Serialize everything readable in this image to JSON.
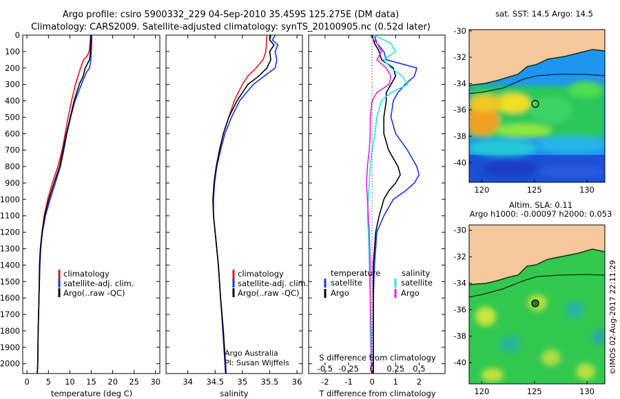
{
  "header": {
    "title_line1": "Argo profile: csiro 5900332_229 04-Sep-2010 35.459S 125.275E (DM data)",
    "title_line2": "Climatology: CARS2009. Satellite-adjusted climatology: synTS_20100905.nc (0.52d later)"
  },
  "colors": {
    "climatology": "#e8141e",
    "satellite": "#1432e6",
    "argo": "#000000",
    "sal_satellite": "#22e6e6",
    "sal_argo": "#e81ee6",
    "land": "#f5c89e"
  },
  "chart_data": [
    {
      "type": "line",
      "id": "temperature",
      "xlabel": "temperature (deg C)",
      "xlim": [
        -1,
        31
      ],
      "xticks": [
        0,
        5,
        10,
        15,
        20,
        25,
        30
      ],
      "ylim": [
        0,
        2060
      ],
      "yticks": [
        0,
        100,
        200,
        300,
        400,
        500,
        600,
        700,
        800,
        900,
        1000,
        1100,
        1200,
        1300,
        1400,
        1500,
        1600,
        1700,
        1800,
        1900,
        2000
      ],
      "y_reversed": true,
      "legend": [
        "climatology",
        "satellite-adj. clim.",
        "Argo(..raw -QC)"
      ],
      "series": [
        {
          "name": "climatology",
          "color": "#e8141e",
          "depth": [
            0,
            20,
            50,
            100,
            130,
            150,
            200,
            300,
            400,
            500,
            600,
            700,
            800,
            900,
            1000,
            1100,
            1200,
            1300,
            1400,
            1600,
            1800,
            2000,
            2060
          ],
          "values": [
            14.8,
            14.8,
            14.7,
            14.5,
            14.0,
            13.2,
            12.5,
            11.3,
            10.4,
            9.6,
            8.9,
            8.2,
            7.2,
            5.9,
            4.8,
            4.0,
            3.5,
            3.2,
            3.0,
            2.8,
            2.6,
            2.5,
            2.4
          ]
        },
        {
          "name": "satellite-adj. clim.",
          "color": "#1432e6",
          "depth": [
            0,
            20,
            50,
            100,
            150,
            200,
            230,
            300,
            400,
            500,
            600,
            700,
            800,
            900,
            1000,
            1100,
            1200,
            1300,
            1400,
            1600,
            1800,
            2000,
            2060
          ],
          "values": [
            15.1,
            15.1,
            15.1,
            15.0,
            14.9,
            14.6,
            13.8,
            12.7,
            11.2,
            10.2,
            9.3,
            8.6,
            7.8,
            6.6,
            5.4,
            4.3,
            3.6,
            3.2,
            3.0,
            2.8,
            2.6,
            2.5,
            2.4
          ]
        },
        {
          "name": "Argo(..raw -QC)",
          "color": "#000000",
          "depth": [
            0,
            20,
            50,
            100,
            150,
            200,
            250,
            300,
            400,
            500,
            600,
            700,
            800,
            900,
            1000,
            1100,
            1200,
            1300,
            1400,
            1600,
            1800,
            2000,
            2060
          ],
          "values": [
            14.9,
            14.9,
            14.9,
            14.8,
            14.6,
            13.6,
            13.1,
            12.2,
            11.0,
            10.1,
            9.2,
            8.4,
            7.6,
            6.3,
            5.1,
            4.1,
            3.5,
            3.1,
            2.9,
            2.8,
            2.6,
            2.5,
            2.4
          ]
        }
      ]
    },
    {
      "type": "line",
      "id": "salinity",
      "xlabel": "salinity",
      "xlim": [
        33.6,
        36.1
      ],
      "xticks": [
        34,
        34.5,
        35,
        35.5,
        36
      ],
      "ylim": [
        0,
        2060
      ],
      "y_reversed": true,
      "legend": [
        "climatology",
        "satellite-adj. clim.",
        "Argo(..raw -QC)"
      ],
      "annotation_line1": "Argo Australia",
      "annotation_line2": "PI: Susan Wijffels",
      "series": [
        {
          "name": "climatology",
          "color": "#e8141e",
          "depth": [
            0,
            50,
            100,
            150,
            200,
            250,
            300,
            400,
            500,
            600,
            700,
            800,
            900,
            1000,
            1100,
            1200,
            1300,
            1400,
            1600,
            1800,
            2000,
            2060
          ],
          "values": [
            35.45,
            35.44,
            35.43,
            35.38,
            35.25,
            35.1,
            35.0,
            34.85,
            34.75,
            34.65,
            34.58,
            34.52,
            34.48,
            34.46,
            34.47,
            34.5,
            34.53,
            34.56,
            34.6,
            34.65,
            34.69,
            34.7
          ]
        },
        {
          "name": "satellite-adj. clim.",
          "color": "#1432e6",
          "depth": [
            0,
            30,
            60,
            100,
            150,
            200,
            250,
            300,
            400,
            500,
            600,
            700,
            800,
            900,
            1000,
            1100,
            1200,
            1300,
            1400,
            1600,
            1800,
            2000,
            2060
          ],
          "values": [
            35.6,
            35.55,
            35.65,
            35.6,
            35.63,
            35.6,
            35.4,
            35.2,
            34.95,
            34.8,
            34.68,
            34.6,
            34.53,
            34.49,
            34.47,
            34.47,
            34.5,
            34.53,
            34.56,
            34.6,
            34.64,
            34.68,
            34.69
          ]
        },
        {
          "name": "Argo(..raw -QC)",
          "color": "#000000",
          "depth": [
            0,
            30,
            60,
            100,
            150,
            200,
            250,
            300,
            400,
            500,
            600,
            700,
            800,
            900,
            1000,
            1100,
            1200,
            1300,
            1400,
            1600,
            1800,
            2000,
            2060
          ],
          "values": [
            35.52,
            35.5,
            35.58,
            35.5,
            35.52,
            35.45,
            35.3,
            35.1,
            34.9,
            34.75,
            34.65,
            34.58,
            34.52,
            34.48,
            34.46,
            34.47,
            34.5,
            34.53,
            34.56,
            34.6,
            34.65,
            34.69,
            34.7
          ]
        }
      ]
    },
    {
      "type": "line",
      "id": "difference",
      "xlabel": "T difference from climatology",
      "xlabel_top": "S difference from climatology",
      "xlim": [
        -2.7,
        3.1
      ],
      "xticks": [
        -2,
        -1,
        0,
        1,
        2
      ],
      "s_ticks": [
        -0.5,
        -0.25,
        0,
        0.25,
        0.5
      ],
      "ylim": [
        0,
        2060
      ],
      "y_reversed": true,
      "legend_heading_t": "temperature",
      "legend_heading_s": "salinity",
      "legend": [
        "satellite",
        "Argo",
        "satellite",
        "Argo"
      ],
      "series": [
        {
          "name": "temperature satellite",
          "color": "#1432e6",
          "depth": [
            0,
            50,
            100,
            150,
            200,
            250,
            300,
            350,
            400,
            500,
            600,
            700,
            800,
            850,
            900,
            950,
            1000,
            1100,
            1200,
            1400,
            1600,
            1800,
            2000,
            2060
          ],
          "values": [
            0.1,
            0.2,
            0.5,
            0.6,
            1.9,
            1.8,
            1.4,
            1.1,
            0.9,
            0.8,
            1.0,
            1.5,
            1.9,
            2.0,
            1.8,
            1.4,
            0.9,
            0.5,
            0.2,
            0.1,
            0.05,
            0.05,
            0.05,
            0.05
          ]
        },
        {
          "name": "temperature Argo",
          "color": "#000000",
          "depth": [
            0,
            50,
            100,
            150,
            200,
            250,
            300,
            350,
            400,
            500,
            600,
            700,
            800,
            850,
            900,
            950,
            1000,
            1100,
            1200,
            1400,
            1600,
            1800,
            2000,
            2060
          ],
          "values": [
            0.0,
            0.1,
            0.3,
            0.4,
            0.9,
            1.0,
            0.8,
            0.6,
            0.6,
            0.5,
            0.5,
            0.7,
            1.1,
            1.2,
            1.0,
            0.7,
            0.5,
            0.3,
            0.15,
            0.05,
            0.05,
            0.05,
            0.05,
            0.05
          ]
        },
        {
          "name": "salinity satellite",
          "color": "#22e6e6",
          "depth": [
            0,
            50,
            100,
            150,
            200,
            250,
            300,
            350,
            400,
            500,
            600,
            700,
            800,
            900,
            1000,
            1100,
            1200,
            1400,
            1600,
            1800,
            2000,
            2060
          ],
          "values": [
            0.02,
            0.2,
            0.25,
            0.12,
            0.2,
            0.32,
            0.38,
            0.2,
            0.1,
            0.05,
            0.03,
            0.0,
            -0.02,
            -0.03,
            -0.04,
            -0.05,
            -0.04,
            -0.03,
            -0.02,
            -0.02,
            -0.01,
            -0.01
          ]
        },
        {
          "name": "salinity Argo",
          "color": "#e81ee6",
          "depth": [
            0,
            50,
            100,
            150,
            200,
            250,
            300,
            350,
            400,
            500,
            600,
            700,
            800,
            900,
            1000,
            1100,
            1200,
            1400,
            1600,
            1800,
            2000,
            2060
          ],
          "values": [
            -0.02,
            0.05,
            0.1,
            0.05,
            0.15,
            0.2,
            0.18,
            0.05,
            0.0,
            -0.02,
            -0.02,
            -0.03,
            -0.05,
            -0.06,
            -0.05,
            -0.04,
            -0.03,
            -0.02,
            -0.02,
            -0.01,
            -0.01,
            -0.01
          ]
        }
      ]
    },
    {
      "type": "heatmap",
      "id": "sst-map",
      "title": "sat. SST: 14.5  Argo: 14.5",
      "xticks": [
        120,
        125,
        130
      ],
      "yticks": [
        -30,
        -32,
        -34,
        -36,
        -38,
        -40
      ],
      "float_position": [
        125.275,
        -35.459
      ]
    },
    {
      "type": "heatmap",
      "id": "sla-map",
      "title_line1": "Altim. SLA: 0.11",
      "title_line2": "Argo h1000: -0.00097 h2000: 0.053",
      "xticks": [
        120,
        125,
        130
      ],
      "yticks": [
        -30,
        -32,
        -34,
        -36,
        -38,
        -40
      ],
      "float_position": [
        125.275,
        -35.459
      ]
    }
  ],
  "footer": {
    "stamp": "©IMOS 02-Aug-2017 22:11:29"
  }
}
